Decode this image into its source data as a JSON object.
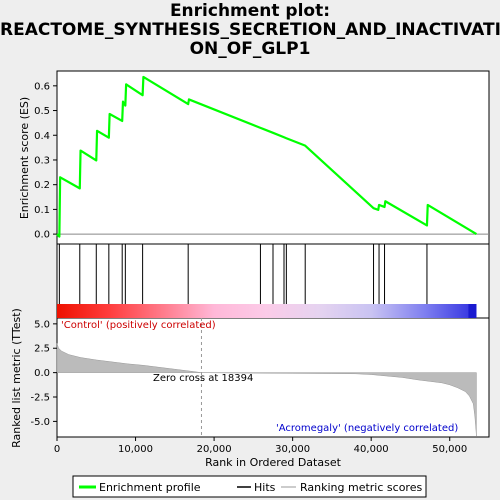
{
  "title_lines": [
    "Enrichment plot:",
    "REACTOME_SYNTHESIS_SECRETION_AND_INACTIVATI",
    "ON_OF_GLP1"
  ],
  "colors": {
    "profile": "#00ff00",
    "hits": "#000000",
    "rank_metric": "#bbbbbb",
    "positive_label": "#cc0000",
    "negative_label": "#0000cc"
  },
  "chart_data": {
    "type": "line",
    "title": "Enrichment plot: REACTOME_SYNTHESIS_SECRETION_AND_INACTIVATION_OF_GLP1",
    "xlabel": "Rank in Ordered Dataset",
    "xlim": [
      0,
      55000
    ],
    "x_ticks": [
      "0",
      "10,000",
      "20,000",
      "30,000",
      "40,000",
      "50,000"
    ],
    "es_panel": {
      "ylabel": "Enrichment score (ES)",
      "ylim": [
        -0.04,
        0.66
      ],
      "y_ticks": [
        "0.0",
        "0.1",
        "0.2",
        "0.3",
        "0.4",
        "0.5",
        "0.6"
      ],
      "series": [
        {
          "name": "Enrichment profile",
          "x": [
            0,
            300,
            400,
            2900,
            3000,
            5000,
            5100,
            6600,
            6700,
            8300,
            8400,
            8700,
            8800,
            10900,
            11000,
            16700,
            16800,
            25900,
            27500,
            28900,
            29200,
            31600,
            40300,
            40900,
            41000,
            41700,
            41800,
            47100,
            47200,
            53400
          ],
          "y": [
            0.0,
            -0.01,
            0.23,
            0.185,
            0.338,
            0.298,
            0.418,
            0.39,
            0.486,
            0.458,
            0.536,
            0.52,
            0.606,
            0.562,
            0.636,
            0.526,
            0.545,
            0.43,
            0.41,
            0.392,
            0.388,
            0.358,
            0.105,
            0.098,
            0.118,
            0.11,
            0.133,
            0.035,
            0.118,
            0.0
          ]
        }
      ]
    },
    "hits": [
      300,
      2900,
      5000,
      6600,
      8300,
      8700,
      10900,
      16700,
      25900,
      27500,
      28900,
      29200,
      31600,
      40300,
      41000,
      41700,
      47100
    ],
    "heatmap_gradient": [
      "#ee1100",
      "#ff3d3d",
      "#ff7a8a",
      "#ffb8d8",
      "#fbcbe8",
      "#e5d3f0",
      "#c9c3f2",
      "#8080f0",
      "#2f2fe0"
    ],
    "metric_panel": {
      "ylabel": "Ranked list metric (TTest)",
      "ylim": [
        -6.6,
        5.6
      ],
      "y_ticks": [
        "-5.0",
        "-2.5",
        "0.0",
        "2.5",
        "5.0"
      ],
      "series": [
        {
          "name": "Ranking metric scores",
          "x": [
            0,
            200,
            600,
            1500,
            3000,
            5000,
            7000,
            9000,
            11000,
            13000,
            15000,
            17000,
            18394,
            20000,
            25000,
            30000,
            35000,
            38000,
            40000,
            42000,
            44000,
            46000,
            48000,
            49000,
            50000,
            51000,
            52000,
            52500,
            53000,
            53200,
            53400
          ],
          "y": [
            3.0,
            2.5,
            2.2,
            1.85,
            1.55,
            1.3,
            1.1,
            0.9,
            0.75,
            0.55,
            0.35,
            0.15,
            0.0,
            -0.02,
            -0.05,
            -0.08,
            -0.1,
            -0.12,
            -0.2,
            -0.35,
            -0.5,
            -0.75,
            -0.95,
            -1.05,
            -1.25,
            -1.55,
            -1.95,
            -2.4,
            -3.2,
            -4.5,
            -6.5
          ]
        }
      ]
    },
    "annotations": {
      "positive": "'Control' (positively correlated)",
      "negative": "'Acromegaly' (negatively correlated)",
      "zero_cross": "Zero cross at 18394",
      "zero_cross_x": 18394
    },
    "legend": {
      "position": "bottom",
      "entries": [
        "Enrichment profile",
        "Hits",
        "Ranking metric scores"
      ]
    }
  }
}
